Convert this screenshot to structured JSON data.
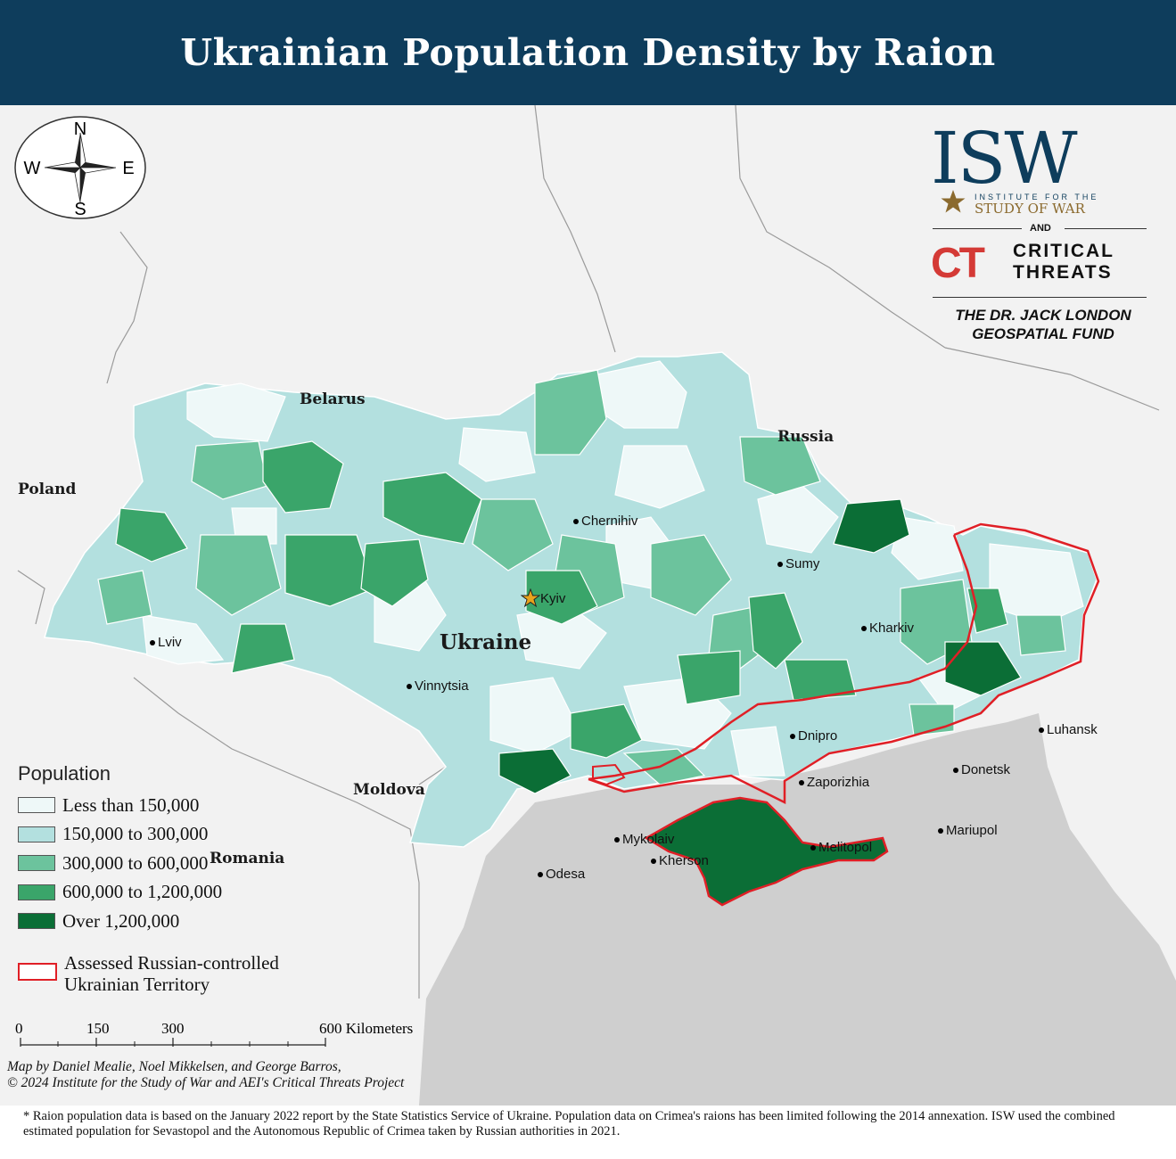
{
  "title": "Ukrainian Population Density by Raion",
  "map": {
    "countries": {
      "belarus": "Belarus",
      "russia": "Russia",
      "poland": "Poland",
      "ukraine": "Ukraine",
      "moldova": "Moldova",
      "romania": "Romania"
    },
    "cities": {
      "chernihiv": "Chernihiv",
      "sumy": "Sumy",
      "kyiv": "Kyiv",
      "kharkiv": "Kharkiv",
      "lviv": "Lviv",
      "vinnytsia": "Vinnytsia",
      "dnipro": "Dnipro",
      "luhansk": "Luhansk",
      "donetsk": "Donetsk",
      "zaporizhia": "Zaporizhia",
      "mykolaiv": "Mykolaiv",
      "mariupol": "Mariupol",
      "melitopol": "Melitopol",
      "kherson": "Kherson",
      "odesa": "Odesa"
    },
    "capital_marker": "star-icon",
    "colors": {
      "class1": "#eef8f8",
      "class2": "#b3e0df",
      "class3": "#6cc39d",
      "class4": "#3aa56a",
      "class5": "#0b6e36",
      "occupied_border": "#e01f26",
      "sea": "#cfcfcf",
      "land": "#f2f2f2",
      "title_bar": "#0e3d5c"
    }
  },
  "compass": {
    "n": "N",
    "s": "S",
    "e": "E",
    "w": "W"
  },
  "logo": {
    "isw": "ISW",
    "isw_line1": "INSTITUTE FOR THE",
    "isw_line2": "STUDY OF WAR",
    "and": "AND",
    "ct": "CT",
    "ct_line1": "CRITICAL",
    "ct_line2": "THREATS",
    "fund_line1": "THE DR. JACK LONDON",
    "fund_line2": "GEOSPATIAL FUND"
  },
  "legend": {
    "title": "Population",
    "classes": [
      {
        "label": "Less than 150,000",
        "color": "#eef8f8"
      },
      {
        "label": "150,000 to 300,000",
        "color": "#b3e0df"
      },
      {
        "label": "300,000 to 600,000",
        "color": "#6cc39d"
      },
      {
        "label": "600,000 to 1,200,000",
        "color": "#3aa56a"
      },
      {
        "label": "Over 1,200,000",
        "color": "#0b6e36"
      }
    ],
    "occupied_line1": "Assessed Russian-controlled",
    "occupied_line2": "Ukrainian Territory"
  },
  "scale": {
    "t0": "0",
    "t1": "150",
    "t2": "300",
    "t3": "600 Kilometers"
  },
  "credits": {
    "line1": "Map by Daniel Mealie, Noel Mikkelsen, and George Barros,",
    "line2": "© 2024 Institute for the Study of War and AEI's Critical Threats Project"
  },
  "footnote": "* Raion population data is based on the January 2022 report by the State Statistics Service of Ukraine. Population data on Crimea's raions has been limited following the 2014 annexation. ISW used the combined estimated population for Sevastopol and the Autonomous Republic of Crimea taken by Russian authorities in 2021."
}
